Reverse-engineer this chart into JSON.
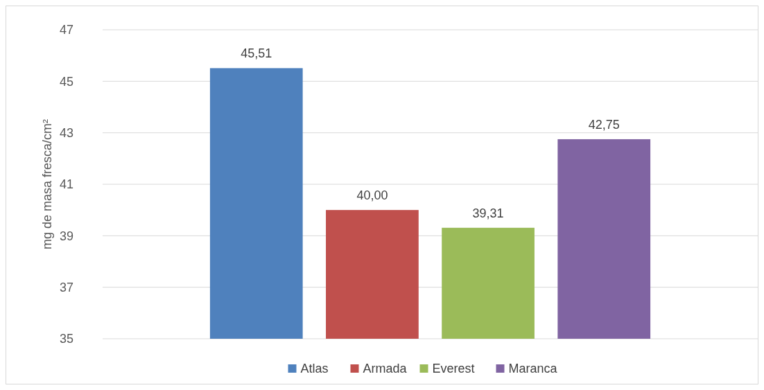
{
  "chart_data": {
    "type": "bar",
    "ylabel": "mg de masa fresca/cm²",
    "categories": [
      null
    ],
    "series": [
      {
        "name": "Atlas",
        "color": "#4f81bd",
        "values": [
          45.51
        ],
        "value_labels": [
          "45,51"
        ]
      },
      {
        "name": "Armada",
        "color": "#c0504d",
        "values": [
          40.0
        ],
        "value_labels": [
          "40,00"
        ]
      },
      {
        "name": "Everest",
        "color": "#9bbb59",
        "values": [
          39.31
        ],
        "value_labels": [
          "39,31"
        ]
      },
      {
        "name": "Maranca",
        "color": "#8064a2",
        "values": [
          42.75
        ],
        "value_labels": [
          "42,75"
        ]
      }
    ],
    "ylim": [
      35,
      47
    ],
    "yticks": [
      35,
      37,
      39,
      41,
      43,
      45,
      47
    ],
    "grid": "y",
    "legend": "bottom"
  }
}
